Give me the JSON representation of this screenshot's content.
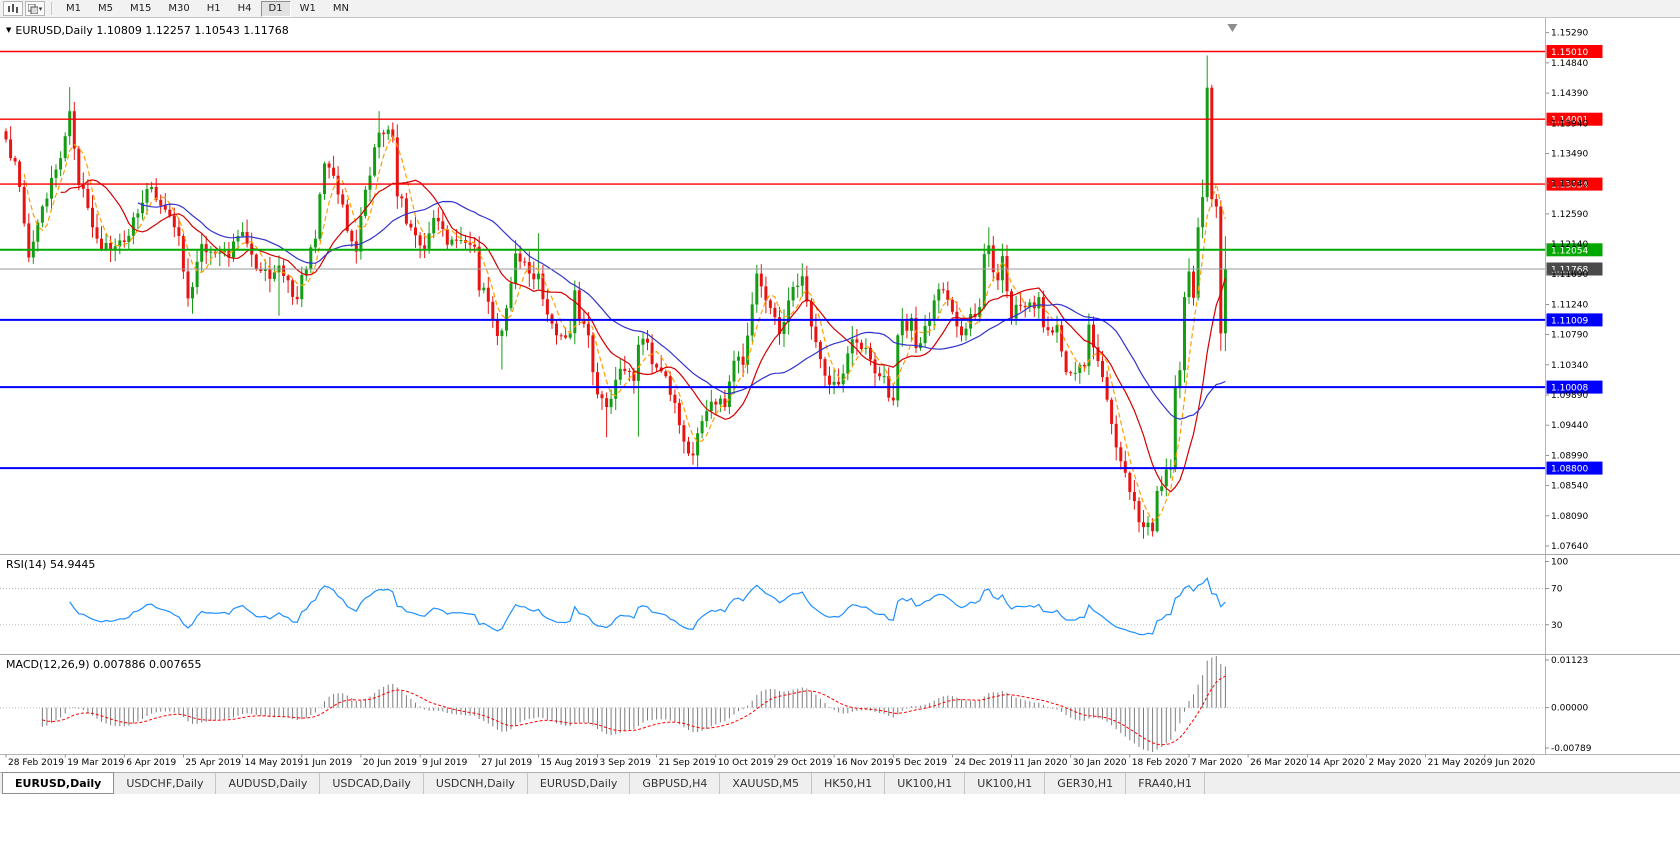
{
  "toolbar": {
    "timeframes": [
      "M1",
      "M5",
      "M15",
      "M30",
      "H1",
      "H4",
      "D1",
      "W1",
      "MN"
    ],
    "active": "D1"
  },
  "main_title": {
    "text": "EURUSD,Daily 1.10809 1.12257 1.10543 1.11768"
  },
  "indicators": {
    "rsi_label": "RSI(14) 54.9445",
    "macd_label": "MACD(12,26,9) 0.007886 0.007655"
  },
  "tabs": {
    "items": [
      "EURUSD,Daily",
      "USDCHF,Daily",
      "AUDUSD,Daily",
      "USDCAD,Daily",
      "USDCNH,Daily",
      "EURUSD,Daily",
      "GBPUSD,H4",
      "XAUUSD,M5",
      "HK50,H1",
      "UK100,H1",
      "UK100,H1",
      "GER30,H1",
      "FRA40,H1"
    ],
    "active_index": 0
  },
  "chart_data": {
    "type": "candlestick",
    "symbol": "EURUSD",
    "timeframe": "Daily",
    "ohlc_display": {
      "open": "1.10809",
      "high": "1.12257",
      "low": "1.10543",
      "close": "1.11768"
    },
    "bar_count": 269,
    "noise": 0.0013,
    "colors": {
      "up": "#149c14",
      "down": "#e81414",
      "background": "#ffffff"
    },
    "y_axis_labels": [
      "1.15290",
      "1.14840",
      "1.14390",
      "1.13940",
      "1.13490",
      "1.13040",
      "1.12590",
      "1.12140",
      "1.11690",
      "1.11240",
      "1.10790",
      "1.10340",
      "1.09890",
      "1.09440",
      "1.08990",
      "1.08540",
      "1.08090",
      "1.07640"
    ],
    "x_axis_labels": [
      "28 Feb 2019",
      "19 Mar 2019",
      "6 Apr 2019",
      "25 Apr 2019",
      "14 May 2019",
      "1 Jun 2019",
      "20 Jun 2019",
      "9 Jul 2019",
      "27 Jul 2019",
      "15 Aug 2019",
      "3 Sep 2019",
      "21 Sep 2019",
      "10 Oct 2019",
      "29 Oct 2019",
      "16 Nov 2019",
      "5 Dec 2019",
      "24 Dec 2019",
      "11 Jan 2020",
      "30 Jan 2020",
      "18 Feb 2020",
      "7 Mar 2020",
      "26 Mar 2020",
      "14 Apr 2020",
      "2 May 2020",
      "21 May 2020",
      "9 Jun 2020"
    ],
    "x_label_every_bars": 13,
    "horizontal_lines": [
      {
        "value": 1.1501,
        "label": "1.15010",
        "color": "#ff0000",
        "width": 1.4
      },
      {
        "value": 1.14001,
        "label": "1.14001",
        "color": "#ff0000",
        "width": 1.4
      },
      {
        "value": 1.13034,
        "label": "1.13034",
        "color": "#ff0000",
        "width": 1.4
      },
      {
        "value": 1.12054,
        "label": "1.12054",
        "color": "#00a800",
        "width": 2
      },
      {
        "value": 1.11009,
        "label": "1.11009",
        "color": "#0000ff",
        "width": 2
      },
      {
        "value": 1.10008,
        "label": "1.10008",
        "color": "#0000ff",
        "width": 2
      },
      {
        "value": 1.088,
        "label": "1.08800",
        "color": "#0000ff",
        "width": 2
      }
    ],
    "current_price": {
      "value": 1.11768,
      "label": "1.11768",
      "color": "#4a4a4a"
    },
    "moving_averages": [
      {
        "period": 5,
        "color": "#ff9f00",
        "dashed": true
      },
      {
        "period": 13,
        "color": "#d40000",
        "dashed": false
      },
      {
        "period": 30,
        "color": "#3232cd",
        "dashed": false
      }
    ],
    "rsi": {
      "period": 14,
      "value": "54.9445",
      "levels": [
        70,
        30
      ],
      "axis_labels": [
        "100",
        "70",
        "30"
      ],
      "color": "#1e90ff"
    },
    "macd": {
      "fast": 12,
      "slow": 26,
      "signal": 9,
      "value": "0.007886",
      "signal_value": "0.007655",
      "axis_labels": [
        "0.01123",
        "0.00000",
        "-0.00789"
      ],
      "hist_color": "#7d7d7d",
      "signal_color": "#ff0000"
    },
    "price_path": [
      [
        0,
        1.137
      ],
      [
        2,
        1.1337
      ],
      [
        5,
        1.1194
      ],
      [
        7,
        1.1246
      ],
      [
        11,
        1.1325
      ],
      [
        14,
        1.1412
      ],
      [
        16,
        1.1302
      ],
      [
        18,
        1.1268
      ],
      [
        20,
        1.1222
      ],
      [
        23,
        1.1205
      ],
      [
        26,
        1.1217
      ],
      [
        31,
        1.1296
      ],
      [
        33,
        1.128
      ],
      [
        38,
        1.1226
      ],
      [
        40,
        1.1133
      ],
      [
        41,
        1.115
      ],
      [
        43,
        1.1214
      ],
      [
        46,
        1.12
      ],
      [
        49,
        1.1194
      ],
      [
        52,
        1.1232
      ],
      [
        55,
        1.1177
      ],
      [
        58,
        1.1162
      ],
      [
        60,
        1.1182
      ],
      [
        62,
        1.116
      ],
      [
        64,
        1.1132
      ],
      [
        65,
        1.1168
      ],
      [
        68,
        1.1222
      ],
      [
        70,
        1.1334
      ],
      [
        73,
        1.1288
      ],
      [
        76,
        1.1218
      ],
      [
        77,
        1.1203
      ],
      [
        79,
        1.1295
      ],
      [
        82,
        1.138
      ],
      [
        85,
        1.1373
      ],
      [
        86,
        1.1285
      ],
      [
        90,
        1.1227
      ],
      [
        92,
        1.1207
      ],
      [
        94,
        1.1253
      ],
      [
        97,
        1.1213
      ],
      [
        100,
        1.122
      ],
      [
        103,
        1.121
      ],
      [
        104,
        1.1145
      ],
      [
        106,
        1.1128
      ],
      [
        108,
        1.1077
      ],
      [
        109,
        1.1085
      ],
      [
        112,
        1.12
      ],
      [
        115,
        1.117
      ],
      [
        117,
        1.117
      ],
      [
        119,
        1.1109
      ],
      [
        121,
        1.1078
      ],
      [
        124,
        1.1081
      ],
      [
        125,
        1.1145
      ],
      [
        126,
        1.1101
      ],
      [
        128,
        1.1078
      ],
      [
        130,
        1.099
      ],
      [
        132,
        1.0971
      ],
      [
        135,
        1.1028
      ],
      [
        138,
        1.101
      ],
      [
        139,
        1.1064
      ],
      [
        140,
        1.1073
      ],
      [
        143,
        1.103
      ],
      [
        145,
        1.1017
      ],
      [
        148,
        1.0944
      ],
      [
        151,
        1.0899
      ],
      [
        152,
        1.0932
      ],
      [
        154,
        1.0965
      ],
      [
        155,
        1.0979
      ],
      [
        158,
        1.0971
      ],
      [
        160,
        1.104
      ],
      [
        162,
        1.1034
      ],
      [
        164,
        1.1124
      ],
      [
        165,
        1.117
      ],
      [
        167,
        1.113
      ],
      [
        169,
        1.1105
      ],
      [
        170,
        1.108
      ],
      [
        173,
        1.115
      ],
      [
        174,
        1.1152
      ],
      [
        175,
        1.1166
      ],
      [
        178,
        1.1068
      ],
      [
        180,
        1.1018
      ],
      [
        183,
        1.1005
      ],
      [
        184,
        1.1021
      ],
      [
        185,
        1.1051
      ],
      [
        186,
        1.1072
      ],
      [
        189,
        1.1059
      ],
      [
        192,
        1.1017
      ],
      [
        195,
        1.0981
      ],
      [
        196,
        1.1078
      ],
      [
        199,
        1.1104
      ],
      [
        200,
        1.1059
      ],
      [
        202,
        1.1092
      ],
      [
        204,
        1.113
      ],
      [
        206,
        1.1145
      ],
      [
        208,
        1.1113
      ],
      [
        210,
        1.1078
      ],
      [
        211,
        1.1088
      ],
      [
        214,
        1.112
      ],
      [
        215,
        1.1199
      ],
      [
        216,
        1.1212
      ],
      [
        217,
        1.1172
      ],
      [
        218,
        1.116
      ],
      [
        219,
        1.1196
      ],
      [
        221,
        1.1103
      ],
      [
        223,
        1.1122
      ],
      [
        225,
        1.1127
      ],
      [
        227,
        1.1135
      ],
      [
        228,
        1.109
      ],
      [
        231,
        1.1093
      ],
      [
        233,
        1.1023
      ],
      [
        235,
        1.1022
      ],
      [
        237,
        1.1032
      ],
      [
        238,
        1.1094
      ],
      [
        239,
        1.106
      ],
      [
        242,
        1.0982
      ],
      [
        243,
        1.0946
      ],
      [
        244,
        1.0911
      ],
      [
        246,
        1.0873
      ],
      [
        248,
        1.0831
      ],
      [
        250,
        1.0792
      ],
      [
        252,
        1.0786
      ],
      [
        253,
        1.0846
      ],
      [
        254,
        1.0853
      ],
      [
        256,
        1.088
      ],
      [
        257,
        1.1
      ],
      [
        258,
        1.1026
      ],
      [
        259,
        1.1135
      ],
      [
        260,
        1.1173
      ],
      [
        261,
        1.1134
      ],
      [
        262,
        1.1239
      ],
      [
        263,
        1.1284
      ],
      [
        264,
        1.1447
      ],
      [
        265,
        1.1281
      ],
      [
        266,
        1.127
      ],
      [
        267,
        1.1081
      ],
      [
        268,
        1.11768
      ]
    ],
    "specials": {
      "14": {
        "h": 1.1448
      },
      "41": {
        "l": 1.111
      },
      "60": {
        "l": 1.1107
      },
      "82": {
        "h": 1.1412
      },
      "92": {
        "l": 1.1193
      },
      "109": {
        "l": 1.1027
      },
      "117": {
        "h": 1.123
      },
      "132": {
        "l": 1.0926
      },
      "139": {
        "l": 1.0927
      },
      "151": {
        "l": 1.0885
      },
      "152": {
        "l": 1.0879
      },
      "216": {
        "h": 1.1239
      },
      "252": {
        "l": 1.0778
      },
      "263": {
        "h": 1.131
      },
      "264": {
        "h": 1.1495
      },
      "267": {
        "l": 1.1055
      },
      "268": {
        "o": 1.10809,
        "h": 1.12257,
        "l": 1.10543,
        "c": 1.11768
      }
    }
  }
}
